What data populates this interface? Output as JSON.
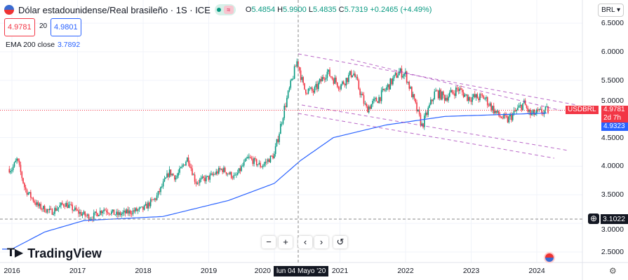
{
  "header": {
    "title": "Dólar estadounidense/Real brasileño · 1S · ICE",
    "open": "5.4854",
    "high": "5.9900",
    "low": "5.4835",
    "close": "5.7319",
    "change": "+0.2465 (+4.49%)",
    "o": "O",
    "h": "H",
    "l": "L",
    "c": "C"
  },
  "prices": {
    "sell": "4.9781",
    "spread": "20",
    "buy": "4.9801"
  },
  "indicator": {
    "name": "EMA 200 close",
    "value": "3.7892"
  },
  "currency": "BRL",
  "y_ticks": [
    "6.5000",
    "6.0000",
    "5.5000",
    "5.0000",
    "4.5000",
    "4.0000",
    "3.5000",
    "3.0000",
    "2.5000"
  ],
  "x_ticks": [
    "2016",
    "2017",
    "2018",
    "2019",
    "2020",
    "2021",
    "2022",
    "2023",
    "2024"
  ],
  "crosshair_date": "lun 04 Mayo '20",
  "crosshair_price": "3.1022",
  "symbol_tag": "USDBRL",
  "last_price": "4.9781",
  "countdown": "2d 7h",
  "ema_price": "4.9323",
  "logo": "TradingView",
  "controls": {
    "zoom_out": "−",
    "zoom_in": "+",
    "left": "‹",
    "right": "›",
    "reset": "↺"
  },
  "colors": {
    "up": "#089981",
    "down": "#f23645",
    "ema": "#2962ff",
    "channel": "#9c27b0"
  },
  "chart_data": {
    "type": "candlestick",
    "symbol": "USDBRL",
    "interval": "1W",
    "ylim": [
      2.3,
      6.75
    ],
    "xlim": [
      "2015-12",
      "2024-12"
    ],
    "close_anchors": [
      [
        2016.0,
        3.95
      ],
      [
        2016.08,
        4.12
      ],
      [
        2016.2,
        3.6
      ],
      [
        2016.4,
        3.3
      ],
      [
        2016.6,
        3.2
      ],
      [
        2016.8,
        3.35
      ],
      [
        2017.0,
        3.2
      ],
      [
        2017.2,
        3.1
      ],
      [
        2017.4,
        3.25
      ],
      [
        2017.6,
        3.15
      ],
      [
        2017.8,
        3.2
      ],
      [
        2018.0,
        3.25
      ],
      [
        2018.2,
        3.45
      ],
      [
        2018.4,
        3.9
      ],
      [
        2018.5,
        3.8
      ],
      [
        2018.68,
        4.15
      ],
      [
        2018.8,
        3.72
      ],
      [
        2019.0,
        3.8
      ],
      [
        2019.2,
        3.95
      ],
      [
        2019.4,
        3.8
      ],
      [
        2019.6,
        4.15
      ],
      [
        2019.8,
        4.0
      ],
      [
        2020.0,
        4.2
      ],
      [
        2020.15,
        5.0
      ],
      [
        2020.35,
        5.85
      ],
      [
        2020.45,
        5.35
      ],
      [
        2020.6,
        5.3
      ],
      [
        2020.8,
        5.65
      ],
      [
        2021.0,
        5.4
      ],
      [
        2021.2,
        5.65
      ],
      [
        2021.4,
        5.0
      ],
      [
        2021.6,
        5.2
      ],
      [
        2021.9,
        5.65
      ],
      [
        2022.0,
        5.6
      ],
      [
        2022.25,
        4.7
      ],
      [
        2022.45,
        5.3
      ],
      [
        2022.6,
        5.2
      ],
      [
        2022.8,
        5.35
      ],
      [
        2022.95,
        5.2
      ],
      [
        2023.2,
        5.2
      ],
      [
        2023.4,
        4.9
      ],
      [
        2023.55,
        4.8
      ],
      [
        2023.8,
        5.1
      ],
      [
        2023.9,
        4.9
      ],
      [
        2024.1,
        4.95
      ],
      [
        2024.18,
        4.98
      ]
    ],
    "ema200": [
      [
        2016.0,
        2.55
      ],
      [
        2016.5,
        2.85
      ],
      [
        2017.1,
        3.05
      ],
      [
        2018.3,
        3.12
      ],
      [
        2019.3,
        3.4
      ],
      [
        2020.0,
        3.7
      ],
      [
        2020.4,
        4.1
      ],
      [
        2020.9,
        4.5
      ],
      [
        2021.7,
        4.72
      ],
      [
        2022.6,
        4.87
      ],
      [
        2024.18,
        4.93
      ]
    ]
  }
}
